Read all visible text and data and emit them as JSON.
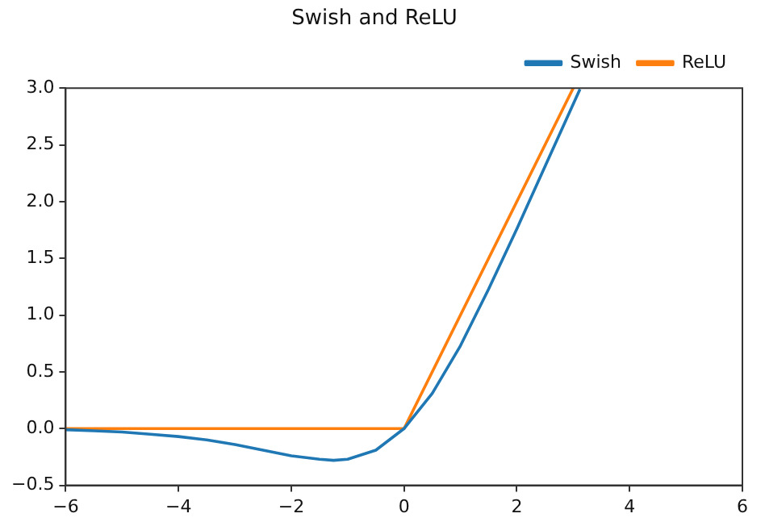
{
  "chart_data": {
    "type": "line",
    "title": "Swish and ReLU",
    "series": [
      {
        "name": "Swish",
        "color": "#1f77b4",
        "x": [
          -6,
          -5.5,
          -5,
          -4.5,
          -4,
          -3.5,
          -3,
          -2.5,
          -2,
          -1.5,
          -1.25,
          -1,
          -0.5,
          0,
          0.5,
          1,
          1.5,
          2,
          2.5,
          3,
          3.12
        ],
        "values": [
          -0.01,
          -0.02,
          -0.03,
          -0.05,
          -0.07,
          -0.1,
          -0.14,
          -0.19,
          -0.24,
          -0.27,
          -0.28,
          -0.27,
          -0.19,
          0,
          0.31,
          0.73,
          1.23,
          1.76,
          2.31,
          2.86,
          2.99
        ]
      },
      {
        "name": "ReLU",
        "color": "#ff7f0e",
        "x": [
          -6,
          0,
          3
        ],
        "values": [
          0,
          0,
          3
        ]
      }
    ],
    "xlim": [
      -6,
      6
    ],
    "ylim": [
      -0.5,
      3
    ],
    "xticks": [
      {
        "value": -6,
        "label": "−6"
      },
      {
        "value": -4,
        "label": "−4"
      },
      {
        "value": -2,
        "label": "−2"
      },
      0,
      2,
      4,
      6
    ],
    "yticks": [
      {
        "value": -0.5,
        "label": "−0.5"
      },
      {
        "value": 0,
        "label": "0.0"
      },
      0.5,
      {
        "value": 1,
        "label": "1.0"
      },
      1.5,
      {
        "value": 2,
        "label": "2.0"
      },
      2.5,
      {
        "value": 3,
        "label": "3.0"
      }
    ],
    "grid": false,
    "legend": "top right",
    "marker": "none",
    "line_style": "solid"
  }
}
